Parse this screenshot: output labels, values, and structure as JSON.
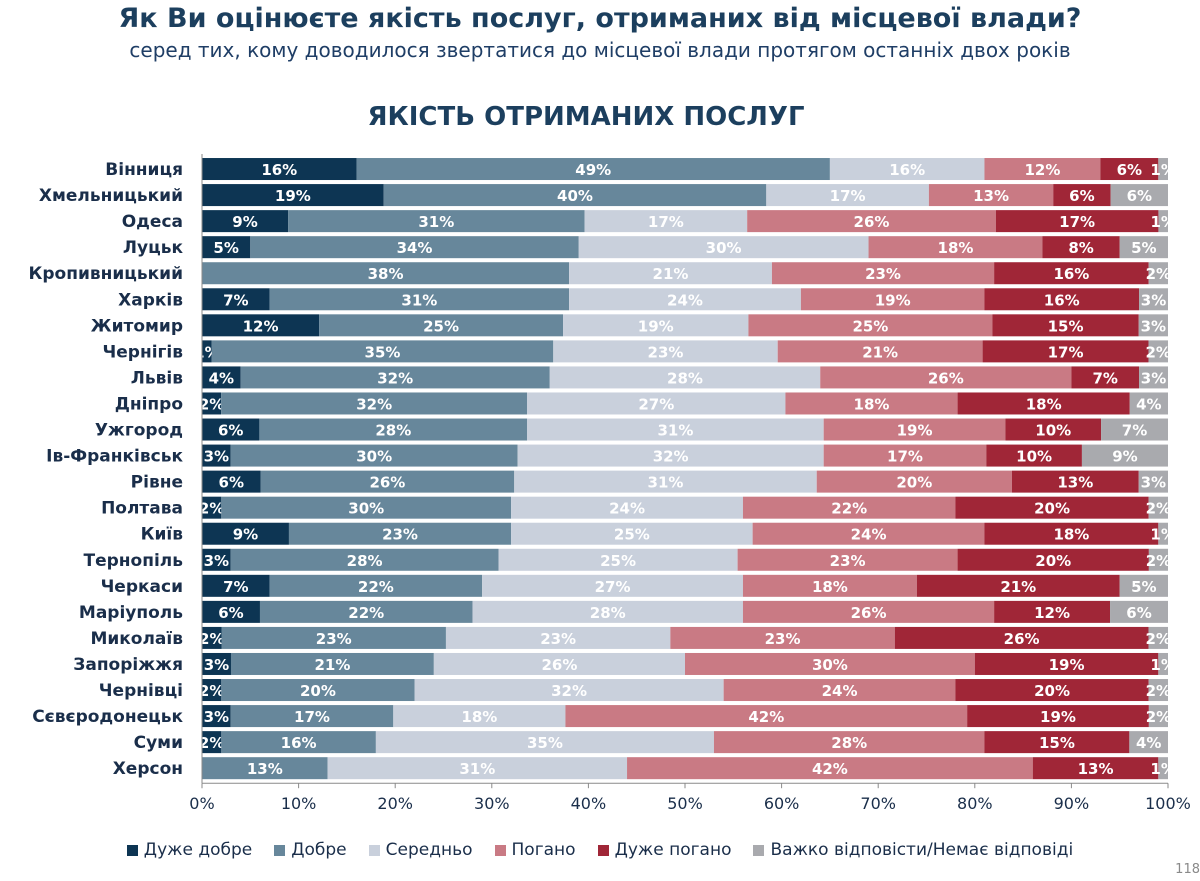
{
  "header": {
    "title": "Як Ви оцінюєте якість послуг, отриманих від місцевої влади?",
    "subtitle": "серед тих, кому доводилося звертатися до місцевої влади протягом останніх двох років",
    "page_number": "118"
  },
  "colors": {
    "series": [
      "#0d3553",
      "#67879b",
      "#c9d0dc",
      "#c97a84",
      "#a02637",
      "#a9aaae"
    ],
    "label_light": "#ffffff",
    "title": "#1c3f5e"
  },
  "chart_data": {
    "type": "bar",
    "orientation": "horizontal",
    "stacked": "percent",
    "title": "ЯКІСТЬ ОТРИМАНИХ ПОСЛУГ",
    "xlabel": "",
    "ylabel": "",
    "xlim": [
      0,
      100
    ],
    "x_ticks": [
      "0%",
      "10%",
      "20%",
      "30%",
      "40%",
      "50%",
      "60%",
      "70%",
      "80%",
      "90%",
      "100%"
    ],
    "grid": false,
    "legend_position": "bottom",
    "categories": [
      "Вінниця",
      "Хмельницький",
      "Одеса",
      "Луцьк",
      "Кропивницький",
      "Харків",
      "Житомир",
      "Чернігів",
      "Львів",
      "Дніпро",
      "Ужгород",
      "Ів-Франківськ",
      "Рівне",
      "Полтава",
      "Київ",
      "Тернопіль",
      "Черкаси",
      "Маріуполь",
      "Миколаїв",
      "Запоріжжя",
      "Чернівці",
      "Сєвєродонецьк",
      "Суми",
      "Херсон"
    ],
    "series": [
      {
        "name": "Дуже добре",
        "values": [
          16,
          19,
          9,
          5,
          0,
          7,
          12,
          1,
          4,
          2,
          6,
          3,
          6,
          2,
          9,
          3,
          7,
          6,
          2,
          3,
          2,
          3,
          2,
          0
        ]
      },
      {
        "name": "Добре",
        "values": [
          49,
          40,
          31,
          34,
          38,
          31,
          25,
          35,
          32,
          32,
          28,
          30,
          26,
          30,
          23,
          28,
          22,
          22,
          23,
          21,
          20,
          17,
          16,
          13
        ]
      },
      {
        "name": "Середньо",
        "values": [
          16,
          17,
          17,
          30,
          21,
          24,
          19,
          23,
          28,
          27,
          31,
          32,
          31,
          24,
          25,
          25,
          27,
          28,
          23,
          26,
          32,
          18,
          35,
          31
        ]
      },
      {
        "name": "Погано",
        "values": [
          12,
          13,
          26,
          18,
          23,
          19,
          25,
          21,
          26,
          18,
          19,
          17,
          20,
          22,
          24,
          23,
          18,
          26,
          23,
          30,
          24,
          42,
          28,
          42
        ]
      },
      {
        "name": "Дуже погано",
        "values": [
          6,
          6,
          17,
          8,
          16,
          16,
          15,
          17,
          7,
          18,
          10,
          10,
          13,
          20,
          18,
          20,
          21,
          12,
          26,
          19,
          20,
          19,
          15,
          13
        ]
      },
      {
        "name": "Важко відповісти/Немає відповіді",
        "values": [
          1,
          6,
          1,
          5,
          2,
          3,
          3,
          2,
          3,
          4,
          7,
          9,
          3,
          2,
          1,
          2,
          5,
          6,
          2,
          1,
          2,
          2,
          4,
          1
        ]
      }
    ]
  }
}
